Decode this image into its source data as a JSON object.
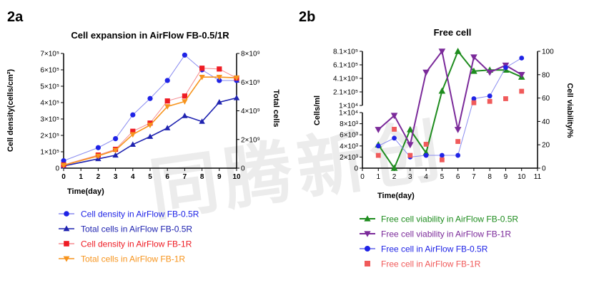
{
  "watermark": "同腾新创",
  "chart_data": [
    {
      "panel": "2a",
      "type": "line",
      "title": "Cell expansion in AirFlow FB-0.5/1R",
      "xlabel": "Time(day)",
      "ylabel": "Cell density(cells/cm²)",
      "y2label": "Total cells",
      "x": [
        0,
        1,
        2,
        3,
        4,
        5,
        6,
        7,
        8,
        9,
        10
      ],
      "xticks": [
        "0",
        "1",
        "2",
        "3",
        "4",
        "5",
        "6",
        "7",
        "8",
        "9",
        "10"
      ],
      "xlim": [
        0,
        10
      ],
      "ylim": [
        0,
        700000
      ],
      "yticks": [
        "0",
        "1×10⁵",
        "2×10⁵",
        "3×10⁵",
        "4×10⁵",
        "5×10⁵",
        "6×10⁵",
        "7×10⁵"
      ],
      "y2lim": [
        0,
        8000000000
      ],
      "y2ticks": [
        "0",
        "2×10⁹",
        "4×10⁹",
        "6×10⁹",
        "8×10⁹"
      ],
      "series": [
        {
          "name": "Cell density in AirFlow FB-0.5R",
          "axis": "left",
          "marker": "circle",
          "filled": true,
          "color": "#1f23e6",
          "line_color": "#8a8cf0",
          "x": [
            0,
            2,
            3,
            4,
            5,
            6,
            7,
            8,
            9,
            10
          ],
          "values": [
            45000,
            125000,
            180000,
            325000,
            425000,
            535000,
            690000,
            600000,
            535000,
            535000
          ]
        },
        {
          "name": "Total cells in AirFlow FB-0.5R",
          "axis": "right",
          "marker": "triangle",
          "filled": true,
          "color": "#1f23b0",
          "line_color": "#1f23b0",
          "x": [
            0,
            2,
            3,
            4,
            5,
            6,
            7,
            8,
            9,
            10
          ],
          "values": [
            150000000,
            650000000,
            900000000,
            1650000000,
            2200000000,
            2800000000,
            3650000000,
            3250000000,
            4600000000,
            4900000000
          ]
        },
        {
          "name": "Cell density in AirFlow FB-1R",
          "axis": "left",
          "marker": "square",
          "filled": true,
          "color": "#ee1c24",
          "line_color": "#f58b8f",
          "x": [
            0,
            2,
            3,
            4,
            5,
            6,
            7,
            8,
            9,
            10
          ],
          "values": [
            20000,
            80000,
            115000,
            225000,
            275000,
            410000,
            440000,
            610000,
            605000,
            550000
          ]
        },
        {
          "name": "Total cells in AirFlow FB-1R",
          "axis": "right",
          "marker": "triangle-down",
          "filled": true,
          "color": "#f7941d",
          "line_color": "#f7941d",
          "x": [
            0,
            2,
            3,
            4,
            5,
            6,
            7,
            8,
            9,
            10
          ],
          "values": [
            200000000,
            850000000,
            1250000000,
            2350000000,
            3000000000,
            4300000000,
            4650000000,
            6350000000,
            6350000000,
            6300000000
          ]
        }
      ],
      "legend_position": "bottom"
    },
    {
      "panel": "2b",
      "type": "line",
      "title": "Free cell",
      "xlabel": "Time(day)",
      "ylabel": "Cells/ml",
      "y2label": "Cell viability/%",
      "x": [
        0,
        1,
        2,
        3,
        4,
        5,
        6,
        7,
        8,
        9,
        10,
        11
      ],
      "xticks": [
        "0",
        "1",
        "2",
        "3",
        "4",
        "5",
        "6",
        "7",
        "8",
        "9",
        "10",
        "11"
      ],
      "xlim": [
        0,
        11
      ],
      "ylim_lower": [
        0,
        10000
      ],
      "yticks_lower": [
        "0",
        "2×10³",
        "4×10³",
        "6×10³",
        "8×10³",
        "1×10⁴"
      ],
      "ylim_upper": [
        10000,
        810000
      ],
      "yticks_upper": [
        "1×10⁴",
        "2.1×10⁵",
        "4.1×10⁵",
        "6.1×10⁵",
        "8.1×10⁵"
      ],
      "y_axis_break": true,
      "y2lim": [
        0,
        100
      ],
      "y2ticks": [
        "0",
        "20",
        "40",
        "60",
        "80",
        "100"
      ],
      "series": [
        {
          "name": "Free cell viability in AirFlow FB-0.5R",
          "axis": "right",
          "marker": "triangle",
          "filled": true,
          "color": "#1e8c1e",
          "line_color": "#1e8c1e",
          "x": [
            1,
            2,
            3,
            4,
            5,
            6,
            7,
            8,
            9,
            10
          ],
          "values": [
            20,
            0,
            33,
            13,
            66,
            100,
            83,
            84,
            84,
            78
          ]
        },
        {
          "name": "Free cell viability in AirFlow FB-1R",
          "axis": "right",
          "marker": "triangle-down",
          "filled": true,
          "color": "#7b2a9a",
          "line_color": "#7b2a9a",
          "x": [
            1,
            2,
            3,
            4,
            5,
            6,
            7,
            8,
            9,
            10
          ],
          "values": [
            33,
            45,
            20,
            82,
            100,
            33,
            95,
            82,
            88,
            80
          ]
        },
        {
          "name": "Free cell in AirFlow FB-0.5R",
          "axis": "left",
          "marker": "circle",
          "filled": true,
          "color": "#1f23e6",
          "line_color": "#8a8cf0",
          "x": [
            1,
            2,
            3,
            4,
            5,
            6,
            7,
            8,
            9,
            10
          ],
          "values": [
            4000,
            5400,
            2000,
            2300,
            2300,
            2300,
            110000,
            150000,
            570000,
            710000
          ]
        },
        {
          "name": "Free cell in AirFlow FB-1R",
          "axis": "left",
          "marker": "square",
          "filled": true,
          "color": "#f05a5a",
          "line_color": null,
          "x": [
            1,
            2,
            3,
            4,
            5,
            6,
            7,
            8,
            9,
            10
          ],
          "values": [
            2300,
            7000,
            2300,
            4300,
            1500,
            4800,
            50000,
            70000,
            110000,
            220000
          ]
        }
      ],
      "legend_position": "bottom"
    }
  ]
}
